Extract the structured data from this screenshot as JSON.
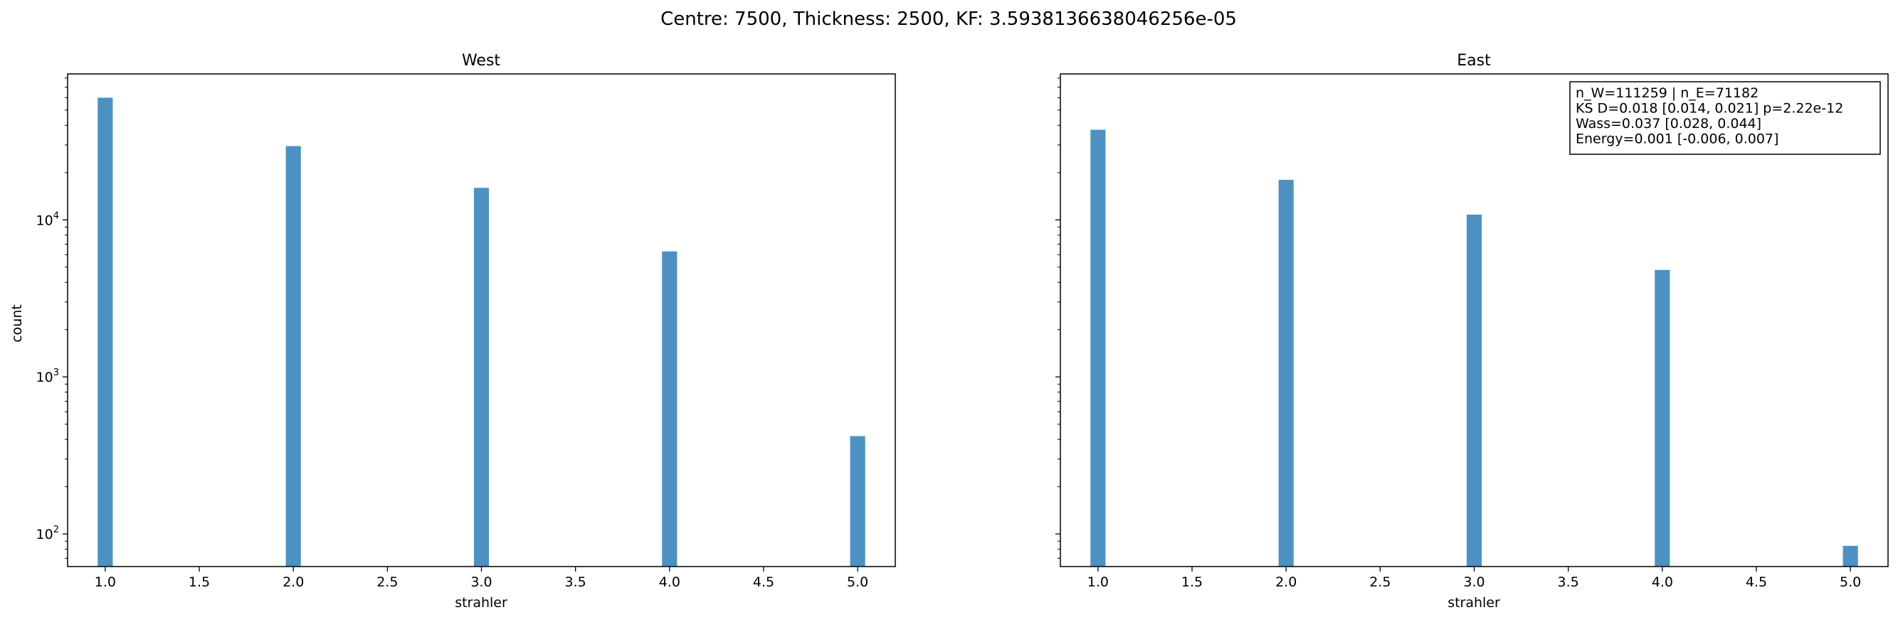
{
  "figure": {
    "suptitle": "Centre: 7500, Thickness: 2500, KF: 3.5938136638046256e-05"
  },
  "chart_data": [
    {
      "type": "bar",
      "title": "West",
      "xlabel": "strahler",
      "ylabel": "count",
      "yscale": "log",
      "xlim": [
        0.8,
        5.2
      ],
      "ylim": [
        62,
        85000
      ],
      "x_ticks": [
        "1.0",
        "1.5",
        "2.0",
        "2.5",
        "3.0",
        "3.5",
        "4.0",
        "4.5",
        "5.0"
      ],
      "y_ticks": [
        {
          "value": 100,
          "base": "10",
          "exp": "2"
        },
        {
          "value": 1000,
          "base": "10",
          "exp": "3"
        },
        {
          "value": 10000,
          "base": "10",
          "exp": "4"
        }
      ],
      "bar_width": 0.08,
      "bar_color": "#4b92c3",
      "bars": [
        {
          "x": 1.0,
          "value": 60000
        },
        {
          "x": 2.0,
          "value": 29500
        },
        {
          "x": 3.0,
          "value": 16000
        },
        {
          "x": 4.0,
          "value": 6300
        },
        {
          "x": 5.0,
          "value": 420
        }
      ],
      "annotation": null
    },
    {
      "type": "bar",
      "title": "East",
      "xlabel": "strahler",
      "ylabel": "",
      "yscale": "log",
      "xlim": [
        0.8,
        5.2
      ],
      "ylim": [
        62,
        85000
      ],
      "x_ticks": [
        "1.0",
        "1.5",
        "2.0",
        "2.5",
        "3.0",
        "3.5",
        "4.0",
        "4.5",
        "5.0"
      ],
      "y_ticks": [],
      "bar_width": 0.08,
      "bar_color": "#4b92c3",
      "bars": [
        {
          "x": 1.0,
          "value": 37500
        },
        {
          "x": 2.0,
          "value": 18000
        },
        {
          "x": 3.0,
          "value": 10800
        },
        {
          "x": 4.0,
          "value": 4800
        },
        {
          "x": 5.0,
          "value": 84
        }
      ],
      "annotation": [
        "n_W=111259 | n_E=71182",
        "KS D=0.018 [0.014, 0.021]  p=2.22e-12",
        "Wass=0.037 [0.028, 0.044]",
        "Energy=0.001 [-0.006, 0.007]"
      ]
    }
  ]
}
